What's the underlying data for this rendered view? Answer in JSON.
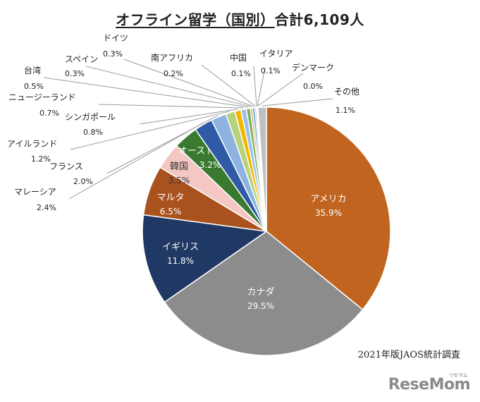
{
  "chart_data": {
    "type": "pie",
    "title": "オフライン留学（国別）合計6,109人",
    "categories": [
      "アメリカ",
      "カナダ",
      "イギリス",
      "マルタ",
      "韓国",
      "オーストラリア",
      "マレーシア",
      "フランス",
      "アイルランド",
      "シンガポール",
      "ニュージーランド",
      "台湾",
      "スペイン",
      "ドイツ",
      "南アフリカ",
      "中国",
      "イタリア",
      "デンマーク",
      "その他"
    ],
    "values": [
      35.9,
      29.5,
      11.8,
      6.5,
      3.5,
      3.2,
      2.4,
      2.0,
      1.2,
      0.8,
      0.7,
      0.5,
      0.3,
      0.3,
      0.2,
      0.1,
      0.1,
      0.0,
      1.1
    ],
    "labels": [
      "35.9%",
      "29.5%",
      "11.8%",
      "6.5%",
      "3.5%",
      "3.2%",
      "2.4%",
      "2.0%",
      "1.2%",
      "0.8%",
      "0.7%",
      "0.5%",
      "0.3%",
      "0.3%",
      "0.2%",
      "0.1%",
      "0.1%",
      "0.0%",
      "1.1%"
    ],
    "colors": [
      "#c0641f",
      "#8c8c8c",
      "#1f3864",
      "#a9521e",
      "#f4c7c3",
      "#3a7a30",
      "#2e5aa6",
      "#8eb3e0",
      "#b7d27d",
      "#f2b800",
      "#9bc0e8",
      "#7fae52",
      "#c9b37a",
      "#5b9bd5",
      "#a6a6a6",
      "#4472c4",
      "#70ad47",
      "#ed7d31",
      "#bfbfbf"
    ],
    "inside_labels": [
      "アメリカ",
      "カナダ",
      "イギリス",
      "マルタ",
      "韓国",
      "オーストラリア"
    ],
    "outside_labels": [
      "マレーシア",
      "フランス",
      "アイルランド",
      "シンガポール",
      "ニュージーランド",
      "台湾",
      "スペイン",
      "ドイツ",
      "南アフリカ",
      "中国",
      "イタリア",
      "デンマーク",
      "その他"
    ],
    "start": "12 o'clock, clockwise, アメリカ first"
  },
  "title_main": "オフライン留学（国別）",
  "title_total": "合計6,109人",
  "source": "2021年版JAOS統計調査",
  "watermark": "ReseMom",
  "watermark_sub": "リセマム"
}
